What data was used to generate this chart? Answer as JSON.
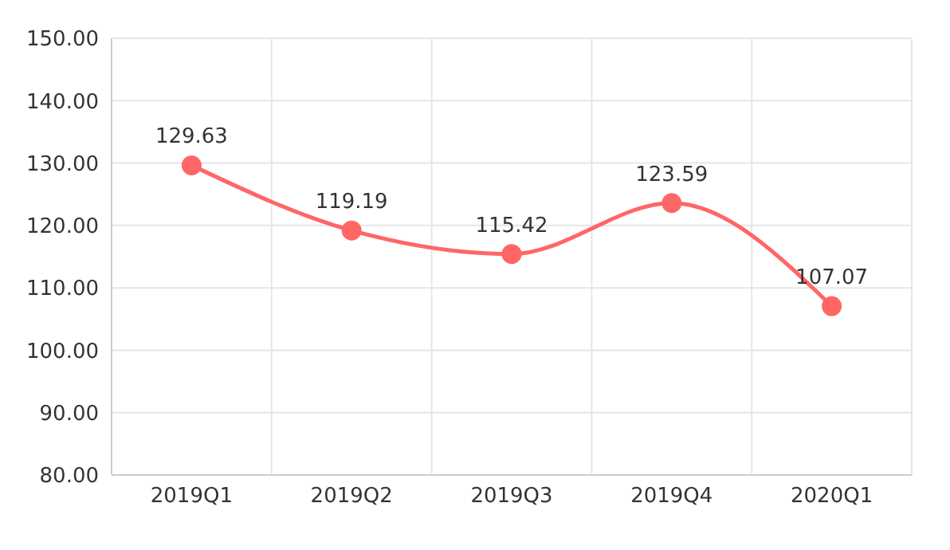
{
  "chart_data": {
    "type": "line",
    "categories": [
      "2019Q1",
      "2019Q2",
      "2019Q3",
      "2019Q4",
      "2020Q1"
    ],
    "series": [
      {
        "color": "#ff6666",
        "values": [
          129.63,
          119.19,
          115.42,
          123.59,
          107.07
        ]
      }
    ],
    "ylim": [
      80,
      150
    ],
    "yticks": [
      {
        "value": 80,
        "label": "80.00"
      },
      {
        "value": 90,
        "label": "90.00"
      },
      {
        "value": 100,
        "label": "100.00"
      },
      {
        "value": 110,
        "label": "110.00"
      },
      {
        "value": 120,
        "label": "120.00"
      },
      {
        "value": 130,
        "label": "130.00"
      },
      {
        "value": 140,
        "label": "140.00"
      },
      {
        "value": 150,
        "label": "150.00"
      }
    ],
    "grid": true,
    "data_labels": true,
    "marker": "circle",
    "line_style": "solid"
  }
}
